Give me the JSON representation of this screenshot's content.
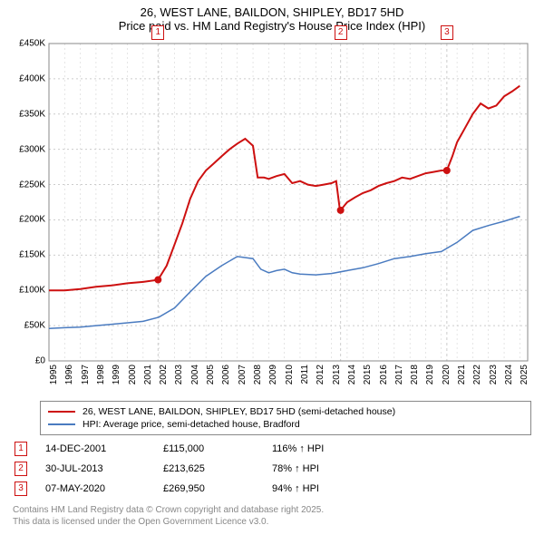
{
  "title_line1": "26, WEST LANE, BAILDON, SHIPLEY, BD17 5HD",
  "title_line2": "Price paid vs. HM Land Registry's House Price Index (HPI)",
  "chart": {
    "type": "line",
    "background_color": "#ffffff",
    "grid_color": "#cccccc",
    "grid_dash": "2,3",
    "x_years": [
      1995,
      1996,
      1997,
      1998,
      1999,
      2000,
      2001,
      2002,
      2003,
      2004,
      2005,
      2006,
      2007,
      2008,
      2009,
      2010,
      2011,
      2012,
      2013,
      2014,
      2015,
      2016,
      2017,
      2018,
      2019,
      2020,
      2021,
      2022,
      2023,
      2024,
      2025
    ],
    "xlim": [
      1995,
      2025.5
    ],
    "ylim": [
      0,
      450
    ],
    "ytick_step": 50,
    "y_prefix": "£",
    "y_suffix": "K",
    "label_fontsize": 10,
    "series": [
      {
        "name": "26, WEST LANE, BAILDON, SHIPLEY, BD17 5HD (semi-detached house)",
        "color": "#cd1010",
        "width": 2,
        "data": [
          [
            1995,
            100
          ],
          [
            1996,
            100
          ],
          [
            1997,
            102
          ],
          [
            1998,
            105
          ],
          [
            1999,
            107
          ],
          [
            2000,
            110
          ],
          [
            2001,
            112
          ],
          [
            2001.95,
            115
          ],
          [
            2002.5,
            135
          ],
          [
            2003,
            165
          ],
          [
            2003.5,
            195
          ],
          [
            2004,
            230
          ],
          [
            2004.5,
            255
          ],
          [
            2005,
            270
          ],
          [
            2005.5,
            280
          ],
          [
            2006,
            290
          ],
          [
            2006.5,
            300
          ],
          [
            2007,
            308
          ],
          [
            2007.5,
            315
          ],
          [
            2008,
            305
          ],
          [
            2008.3,
            260
          ],
          [
            2008.7,
            260
          ],
          [
            2009,
            258
          ],
          [
            2009.5,
            262
          ],
          [
            2010,
            265
          ],
          [
            2010.5,
            252
          ],
          [
            2011,
            255
          ],
          [
            2011.5,
            250
          ],
          [
            2012,
            248
          ],
          [
            2012.5,
            250
          ],
          [
            2013,
            252
          ],
          [
            2013.3,
            255
          ],
          [
            2013.56,
            210
          ],
          [
            2013.58,
            213.6
          ],
          [
            2014,
            225
          ],
          [
            2014.5,
            232
          ],
          [
            2015,
            238
          ],
          [
            2015.5,
            242
          ],
          [
            2016,
            248
          ],
          [
            2016.5,
            252
          ],
          [
            2017,
            255
          ],
          [
            2017.5,
            260
          ],
          [
            2018,
            258
          ],
          [
            2018.5,
            262
          ],
          [
            2019,
            266
          ],
          [
            2019.5,
            268
          ],
          [
            2020,
            270
          ],
          [
            2020.35,
            270
          ],
          [
            2020.7,
            290
          ],
          [
            2021,
            310
          ],
          [
            2021.5,
            330
          ],
          [
            2022,
            350
          ],
          [
            2022.5,
            365
          ],
          [
            2023,
            358
          ],
          [
            2023.5,
            362
          ],
          [
            2024,
            375
          ],
          [
            2024.5,
            382
          ],
          [
            2025,
            390
          ]
        ]
      },
      {
        "name": "HPI: Average price, semi-detached house, Bradford",
        "color": "#4a7bc0",
        "width": 1.5,
        "data": [
          [
            1995,
            46
          ],
          [
            1996,
            47
          ],
          [
            1997,
            48
          ],
          [
            1998,
            50
          ],
          [
            1999,
            52
          ],
          [
            2000,
            54
          ],
          [
            2001,
            56
          ],
          [
            2002,
            62
          ],
          [
            2003,
            75
          ],
          [
            2004,
            98
          ],
          [
            2005,
            120
          ],
          [
            2006,
            135
          ],
          [
            2007,
            148
          ],
          [
            2008,
            145
          ],
          [
            2008.5,
            130
          ],
          [
            2009,
            125
          ],
          [
            2009.5,
            128
          ],
          [
            2010,
            130
          ],
          [
            2010.5,
            125
          ],
          [
            2011,
            123
          ],
          [
            2012,
            122
          ],
          [
            2013,
            124
          ],
          [
            2014,
            128
          ],
          [
            2015,
            132
          ],
          [
            2016,
            138
          ],
          [
            2017,
            145
          ],
          [
            2018,
            148
          ],
          [
            2019,
            152
          ],
          [
            2020,
            155
          ],
          [
            2021,
            168
          ],
          [
            2022,
            185
          ],
          [
            2023,
            192
          ],
          [
            2024,
            198
          ],
          [
            2025,
            205
          ]
        ]
      }
    ],
    "sale_markers": [
      {
        "n": "1",
        "x": 2001.95
      },
      {
        "n": "2",
        "x": 2013.58
      },
      {
        "n": "3",
        "x": 2020.35
      }
    ],
    "sale_line_color": "#cccccc",
    "sale_line_dash": "3,3"
  },
  "legend": {
    "items": [
      {
        "color": "#cd1010",
        "label": "26, WEST LANE, BAILDON, SHIPLEY, BD17 5HD (semi-detached house)"
      },
      {
        "color": "#4a7bc0",
        "label": "HPI: Average price, semi-detached house, Bradford"
      }
    ]
  },
  "sales": [
    {
      "n": "1",
      "date": "14-DEC-2001",
      "price": "£115,000",
      "hpi": "116% ↑ HPI"
    },
    {
      "n": "2",
      "date": "30-JUL-2013",
      "price": "£213,625",
      "hpi": "78% ↑ HPI"
    },
    {
      "n": "3",
      "date": "07-MAY-2020",
      "price": "£269,950",
      "hpi": "94% ↑ HPI"
    }
  ],
  "footer_line1": "Contains HM Land Registry data © Crown copyright and database right 2025.",
  "footer_line2": "This data is licensed under the Open Government Licence v3.0."
}
